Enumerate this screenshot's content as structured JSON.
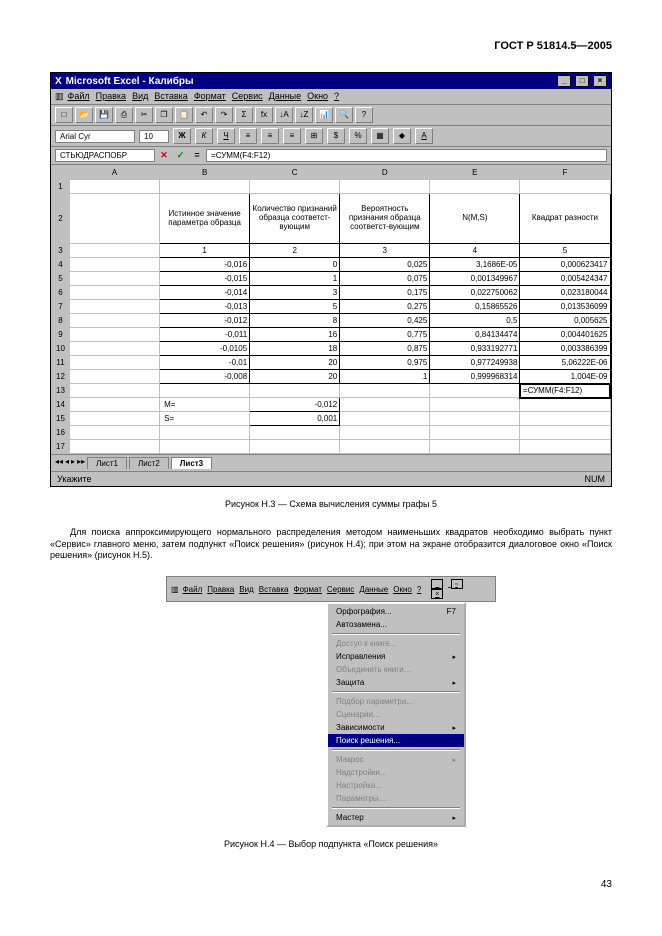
{
  "doc_id": "ГОСТ Р 51814.5—2005",
  "page": "43",
  "fig3": {
    "title": "Microsoft Excel - Калибры",
    "menu": [
      "Файл",
      "Правка",
      "Вид",
      "Вставка",
      "Формат",
      "Сервис",
      "Данные",
      "Окно",
      "?"
    ],
    "font_name": "Arial Cyr",
    "font_size": "10",
    "name_box": "СТЬЮДРАСПОБР",
    "formula": "=СУММ(F4:F12)",
    "columns": [
      "A",
      "B",
      "C",
      "D",
      "E",
      "F"
    ],
    "headers": [
      "Истинное значение параметра образца",
      "Количество признаний образца соответст-вующим",
      "Вероятность признания образца соответст-вующим",
      "N(M,S)",
      "Квадрат разности"
    ],
    "subhead": [
      "1",
      "2",
      "3",
      "4",
      "5"
    ],
    "rows": [
      [
        "-0,016",
        "0",
        "0,025",
        "3,1686E-05",
        "0,000623417"
      ],
      [
        "-0,015",
        "1",
        "0,075",
        "0,001349967",
        "0,005424347"
      ],
      [
        "-0,014",
        "3",
        "0,175",
        "0,022750062",
        "0,023180044"
      ],
      [
        "-0,013",
        "5",
        "0,275",
        "0,15865526",
        "0,013536099"
      ],
      [
        "-0,012",
        "8",
        "0,425",
        "0,5",
        "0,005625"
      ],
      [
        "-0,011",
        "16",
        "0,775",
        "0,84134474",
        "0,004401625"
      ],
      [
        "-0,0105",
        "18",
        "0,875",
        "0,933192771",
        "0,003386399"
      ],
      [
        "-0,01",
        "20",
        "0,975",
        "0,977249938",
        "5,06222E-06"
      ],
      [
        "-0,008",
        "20",
        "1",
        "0,999968314",
        "1,004E-09"
      ]
    ],
    "selected": "=СУММ(F4:F12)",
    "extra_rows": [
      {
        "label": "M=",
        "val": "-0,012"
      },
      {
        "label": "S=",
        "val": "0,001"
      }
    ],
    "tabs": [
      "Лист1",
      "Лист2",
      "Лист3"
    ],
    "active_tab": "Лист3",
    "status": "Укажите",
    "status_right": "NUM",
    "caption": "Рисунок Н.3 — Схема вычисления суммы графы 5"
  },
  "para": "Для поиска аппроксимирующего нормального распределения методом наименьших квадратов необходимо выбрать пункт «Сервис» главного меню, затем подпункт «Поиск решения» (рисунок Н.4); при этом на экране отобразится диалоговое окно «Поиск решения» (рисунок Н.5).",
  "fig4": {
    "menu": [
      "Файл",
      "Правка",
      "Вид",
      "Вставка",
      "Формат",
      "Сервис",
      "Данные",
      "Окно",
      "?"
    ],
    "items": [
      {
        "label": "Орфография...",
        "hint": "F7",
        "disabled": false
      },
      {
        "label": "Автозамена...",
        "disabled": false
      },
      {
        "sep": true
      },
      {
        "label": "Доступ к книге...",
        "disabled": true
      },
      {
        "label": "Исправления",
        "arrow": true,
        "disabled": false
      },
      {
        "label": "Объединить книги...",
        "disabled": true
      },
      {
        "label": "Защита",
        "arrow": true,
        "disabled": false
      },
      {
        "sep": true
      },
      {
        "label": "Подбор параметра...",
        "disabled": true
      },
      {
        "label": "Сценарии...",
        "disabled": true
      },
      {
        "label": "Зависимости",
        "arrow": true,
        "disabled": false
      },
      {
        "label": "Поиск решения...",
        "sel": true
      },
      {
        "sep": true
      },
      {
        "label": "Макрос",
        "arrow": true,
        "disabled": true
      },
      {
        "label": "Надстройки...",
        "disabled": true
      },
      {
        "label": "Настройка...",
        "disabled": true
      },
      {
        "label": "Параметры...",
        "disabled": true
      },
      {
        "sep": true
      },
      {
        "label": "Мастер",
        "arrow": true,
        "disabled": false
      }
    ],
    "caption": "Рисунок Н.4 — Выбор подпункта «Поиск решения»"
  }
}
